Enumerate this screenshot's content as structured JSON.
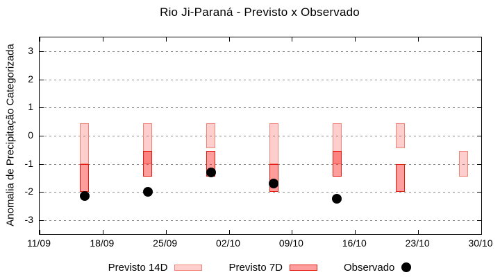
{
  "title": "Rio Ji-Paraná - Previsto x Observado",
  "colors": {
    "axis": "#000000",
    "grid": "#888888",
    "p14-fill": "rgba(250,60,50,0.25)",
    "p14-border": "#ef8378",
    "p7-fill": "rgba(250,40,35,0.45)",
    "p7-border": "#e8190f",
    "obs": "#000000"
  },
  "legend": {
    "items": [
      {
        "label": "Previsto 14D",
        "swatch": "light"
      },
      {
        "label": "Previsto 7D",
        "swatch": "dark"
      },
      {
        "label": "Observado",
        "swatch": "dot"
      }
    ]
  },
  "chart_data": {
    "type": "bar",
    "title": "Rio Ji-Paraná - Previsto x Observado",
    "xlabel": "",
    "ylabel": "Anomalia de Precipitação Categorizada",
    "ylim": [
      -3.5,
      3.5
    ],
    "yticks": [
      3,
      2,
      1,
      0,
      -1,
      -2,
      -3
    ],
    "xticks": [
      {
        "label": "11/09",
        "day": 0
      },
      {
        "label": "18/09",
        "day": 7
      },
      {
        "label": "25/09",
        "day": 14
      },
      {
        "label": "02/10",
        "day": 21
      },
      {
        "label": "09/10",
        "day": 28
      },
      {
        "label": "16/10",
        "day": 35
      },
      {
        "label": "23/10",
        "day": 42
      },
      {
        "label": "30/10",
        "day": 49
      }
    ],
    "x_total_days": 49,
    "grid": true,
    "legend_position": "bottom",
    "bar_width_days": 1,
    "series": [
      {
        "name": "Previsto 14D",
        "type": "range-bar",
        "style": "light",
        "points": [
          {
            "date": "16/09",
            "day": 5,
            "top": 0.45,
            "bottom": -1.0
          },
          {
            "date": "23/09",
            "day": 12,
            "top": 0.45,
            "bottom": -1.0
          },
          {
            "date": "30/09",
            "day": 19,
            "top": 0.45,
            "bottom": -0.45
          },
          {
            "date": "07/10",
            "day": 26,
            "top": 0.45,
            "bottom": -1.0
          },
          {
            "date": "14/10",
            "day": 33,
            "top": 0.45,
            "bottom": -1.0
          },
          {
            "date": "21/10",
            "day": 40,
            "top": 0.45,
            "bottom": -0.45
          },
          {
            "date": "28/10",
            "day": 47,
            "top": -0.55,
            "bottom": -1.45
          }
        ]
      },
      {
        "name": "Previsto 7D",
        "type": "range-bar",
        "style": "dark",
        "points": [
          {
            "date": "16/09",
            "day": 5,
            "top": -1.0,
            "bottom": -2.0
          },
          {
            "date": "23/09",
            "day": 12,
            "top": -0.55,
            "bottom": -1.45
          },
          {
            "date": "30/09",
            "day": 19,
            "top": -0.55,
            "bottom": -1.45
          },
          {
            "date": "07/10",
            "day": 26,
            "top": -1.0,
            "bottom": -2.0
          },
          {
            "date": "14/10",
            "day": 33,
            "top": -0.55,
            "bottom": -1.45
          },
          {
            "date": "21/10",
            "day": 40,
            "top": -1.0,
            "bottom": -2.0
          }
        ]
      },
      {
        "name": "Observado",
        "type": "scatter",
        "style": "dot",
        "points": [
          {
            "date": "16/09",
            "day": 5,
            "value": -2.15
          },
          {
            "date": "23/09",
            "day": 12,
            "value": -2.0
          },
          {
            "date": "30/09",
            "day": 19,
            "value": -1.3
          },
          {
            "date": "07/10",
            "day": 26,
            "value": -1.7
          },
          {
            "date": "14/10",
            "day": 33,
            "value": -2.25
          }
        ]
      }
    ]
  }
}
